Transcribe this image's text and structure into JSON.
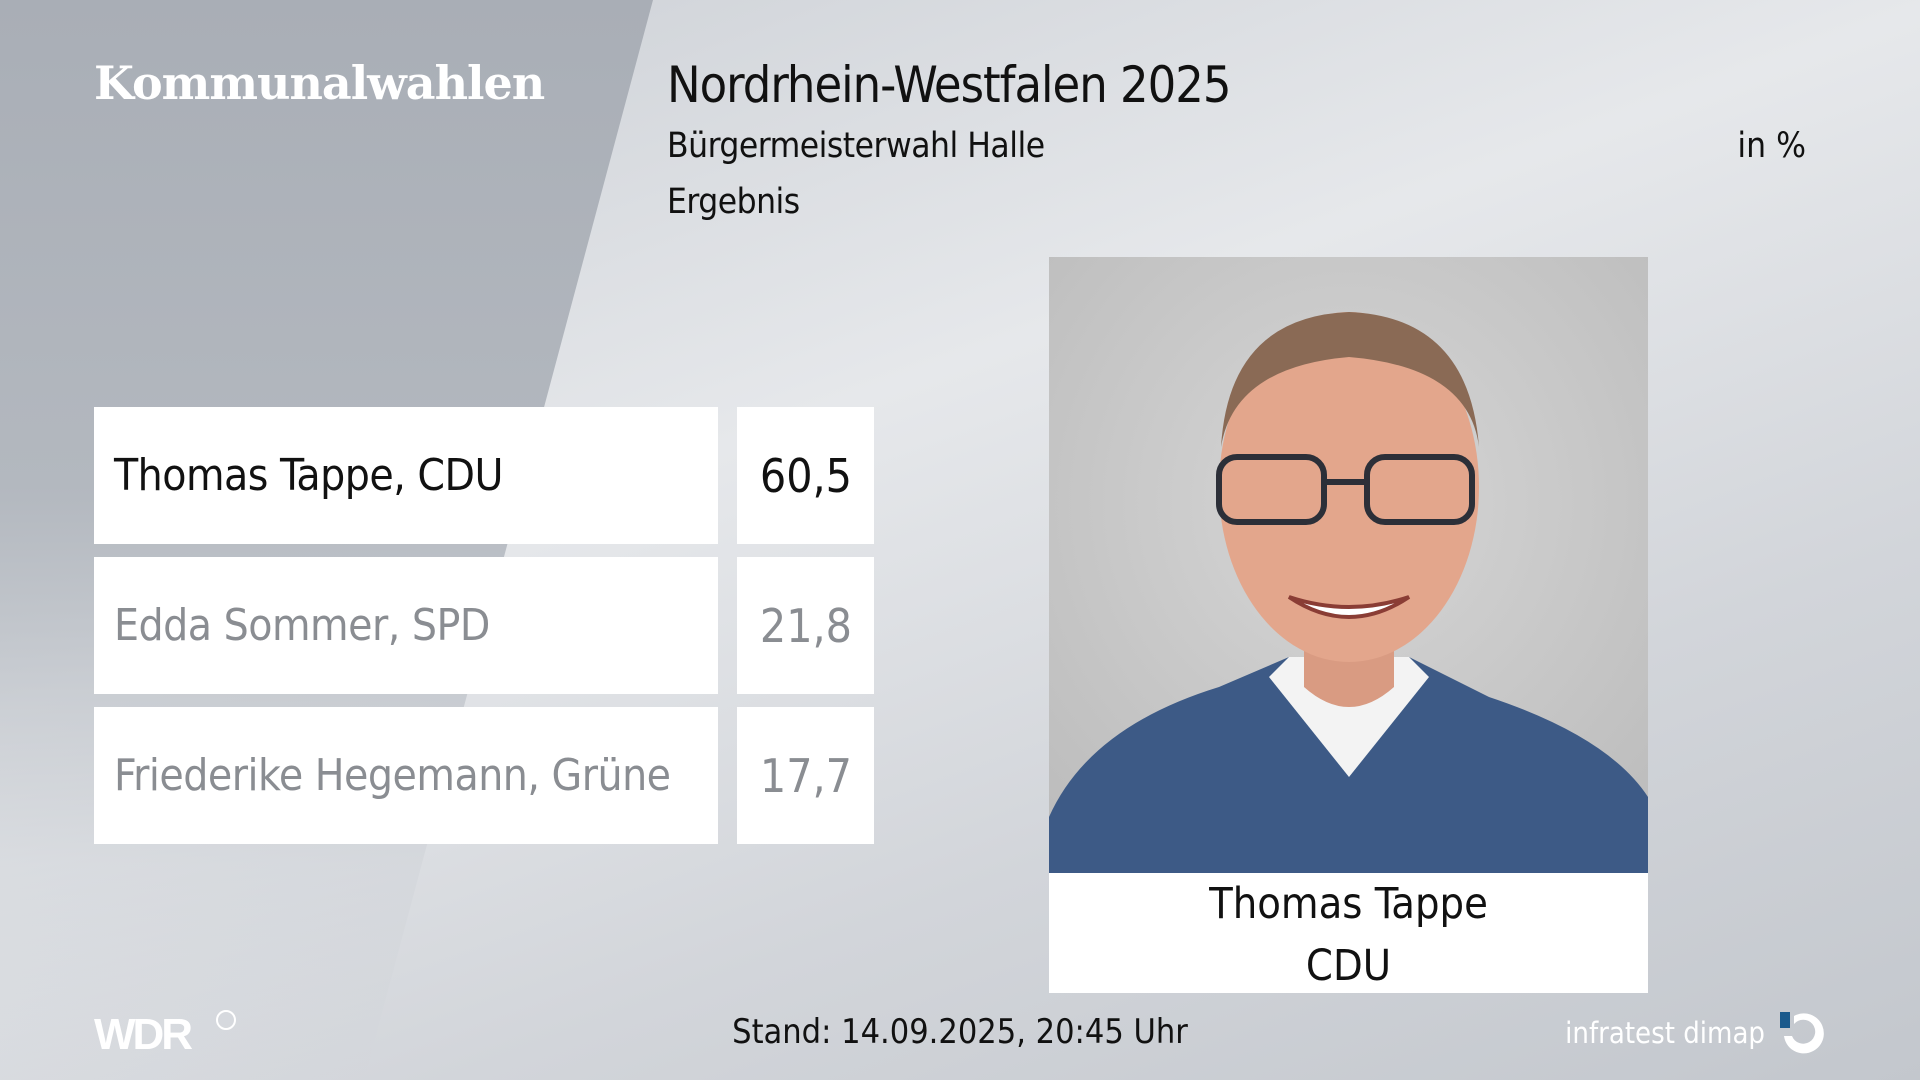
{
  "header": {
    "brand": "Kommunalwahlen",
    "title": "Nordrhein-Westfalen 2025",
    "subtitle": "Bürgermeisterwahl Halle",
    "unit": "in %",
    "label": "Ergebnis"
  },
  "results": [
    {
      "candidate": "Thomas Tappe, CDU",
      "value": "60,5",
      "winner": true
    },
    {
      "candidate": "Edda Sommer, SPD",
      "value": "21,8",
      "winner": false
    },
    {
      "candidate": "Friederike Hegemann, Grüne",
      "value": "17,7",
      "winner": false
    }
  ],
  "winner_card": {
    "name": "Thomas Tappe",
    "party": "CDU"
  },
  "footer": {
    "broadcaster": "WDR",
    "stand": "Stand: 14.09.2025, 20:45 Uhr",
    "pollster": "infratest dimap"
  },
  "colors": {
    "text": "#111111",
    "muted": "#8a8d92",
    "logo_accent": "#1a5a8c"
  }
}
